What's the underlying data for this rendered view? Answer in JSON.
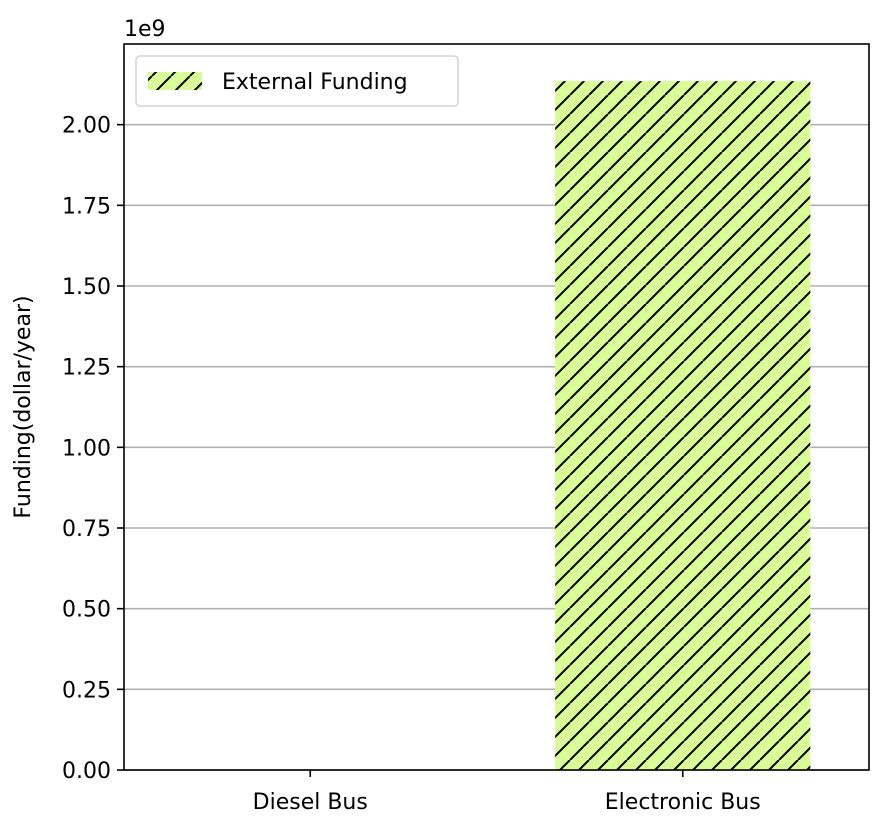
{
  "chart_data": {
    "type": "bar",
    "title": "",
    "xlabel": "",
    "ylabel": "Funding(dollar/year)",
    "offset_label": "1e9",
    "categories": [
      "Diesel Bus",
      "Electronic Bus"
    ],
    "series": [
      {
        "name": "External Funding",
        "values": [
          0,
          2.135
        ],
        "color": "#d9fc98",
        "hatch": "//"
      }
    ],
    "ylim": [
      0,
      2.25
    ],
    "yticks": [
      0.0,
      0.25,
      0.5,
      0.75,
      1.0,
      1.25,
      1.5,
      1.75,
      2.0
    ],
    "ytick_labels": [
      "0.00",
      "0.25",
      "0.50",
      "0.75",
      "1.00",
      "1.25",
      "1.50",
      "1.75",
      "2.00"
    ],
    "grid": "y",
    "legend_position": "top-left"
  }
}
